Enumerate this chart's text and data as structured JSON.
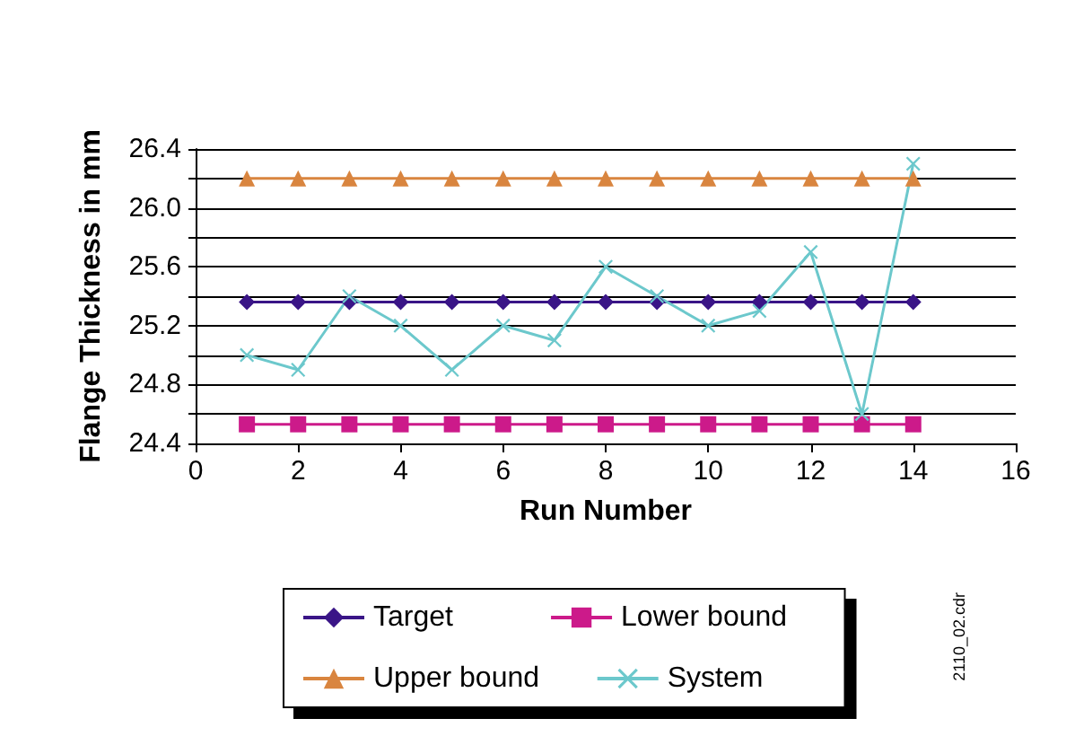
{
  "chart_data": {
    "type": "line",
    "xlabel": "Run Number",
    "ylabel": "Flange Thickness in mm",
    "x": [
      1,
      2,
      3,
      4,
      5,
      6,
      7,
      8,
      9,
      10,
      11,
      12,
      13,
      14
    ],
    "xlim": [
      0,
      16
    ],
    "xticks": [
      0,
      2,
      4,
      6,
      8,
      10,
      12,
      14,
      16
    ],
    "ylim": [
      24.4,
      26.4
    ],
    "yticks": [
      24.4,
      {
        "value": 24.6,
        "label": null
      },
      24.8,
      {
        "value": 25.0,
        "label": null
      },
      25.2,
      {
        "value": 25.4,
        "label": null
      },
      25.6,
      {
        "value": 25.8,
        "label": null
      },
      {
        "value": 26,
        "label": "26.0"
      },
      {
        "value": 26.2,
        "label": null
      },
      26.4
    ],
    "grid": "y",
    "legend": "bottom",
    "series": [
      {
        "name": "Target",
        "color": "#3a1587",
        "marker": "diamond",
        "values": [
          25.36,
          25.36,
          25.36,
          25.36,
          25.36,
          25.36,
          25.36,
          25.36,
          25.36,
          25.36,
          25.36,
          25.36,
          25.36,
          25.36
        ]
      },
      {
        "name": "Lower bound",
        "color": "#cc1a8a",
        "marker": "square",
        "values": [
          24.53,
          24.53,
          24.53,
          24.53,
          24.53,
          24.53,
          24.53,
          24.53,
          24.53,
          24.53,
          24.53,
          24.53,
          24.53,
          24.53
        ]
      },
      {
        "name": "Upper bound",
        "color": "#d9853f",
        "marker": "triangle",
        "values": [
          26.2,
          26.2,
          26.2,
          26.2,
          26.2,
          26.2,
          26.2,
          26.2,
          26.2,
          26.2,
          26.2,
          26.2,
          26.2,
          26.2
        ]
      },
      {
        "name": "System",
        "color": "#6cc8cc",
        "marker": "cross",
        "values": [
          25.0,
          24.9,
          25.4,
          25.2,
          24.9,
          25.2,
          25.1,
          25.6,
          25.4,
          25.2,
          25.3,
          25.7,
          24.6,
          26.3
        ]
      }
    ],
    "annotations": [
      "2110_02.cdr"
    ]
  }
}
